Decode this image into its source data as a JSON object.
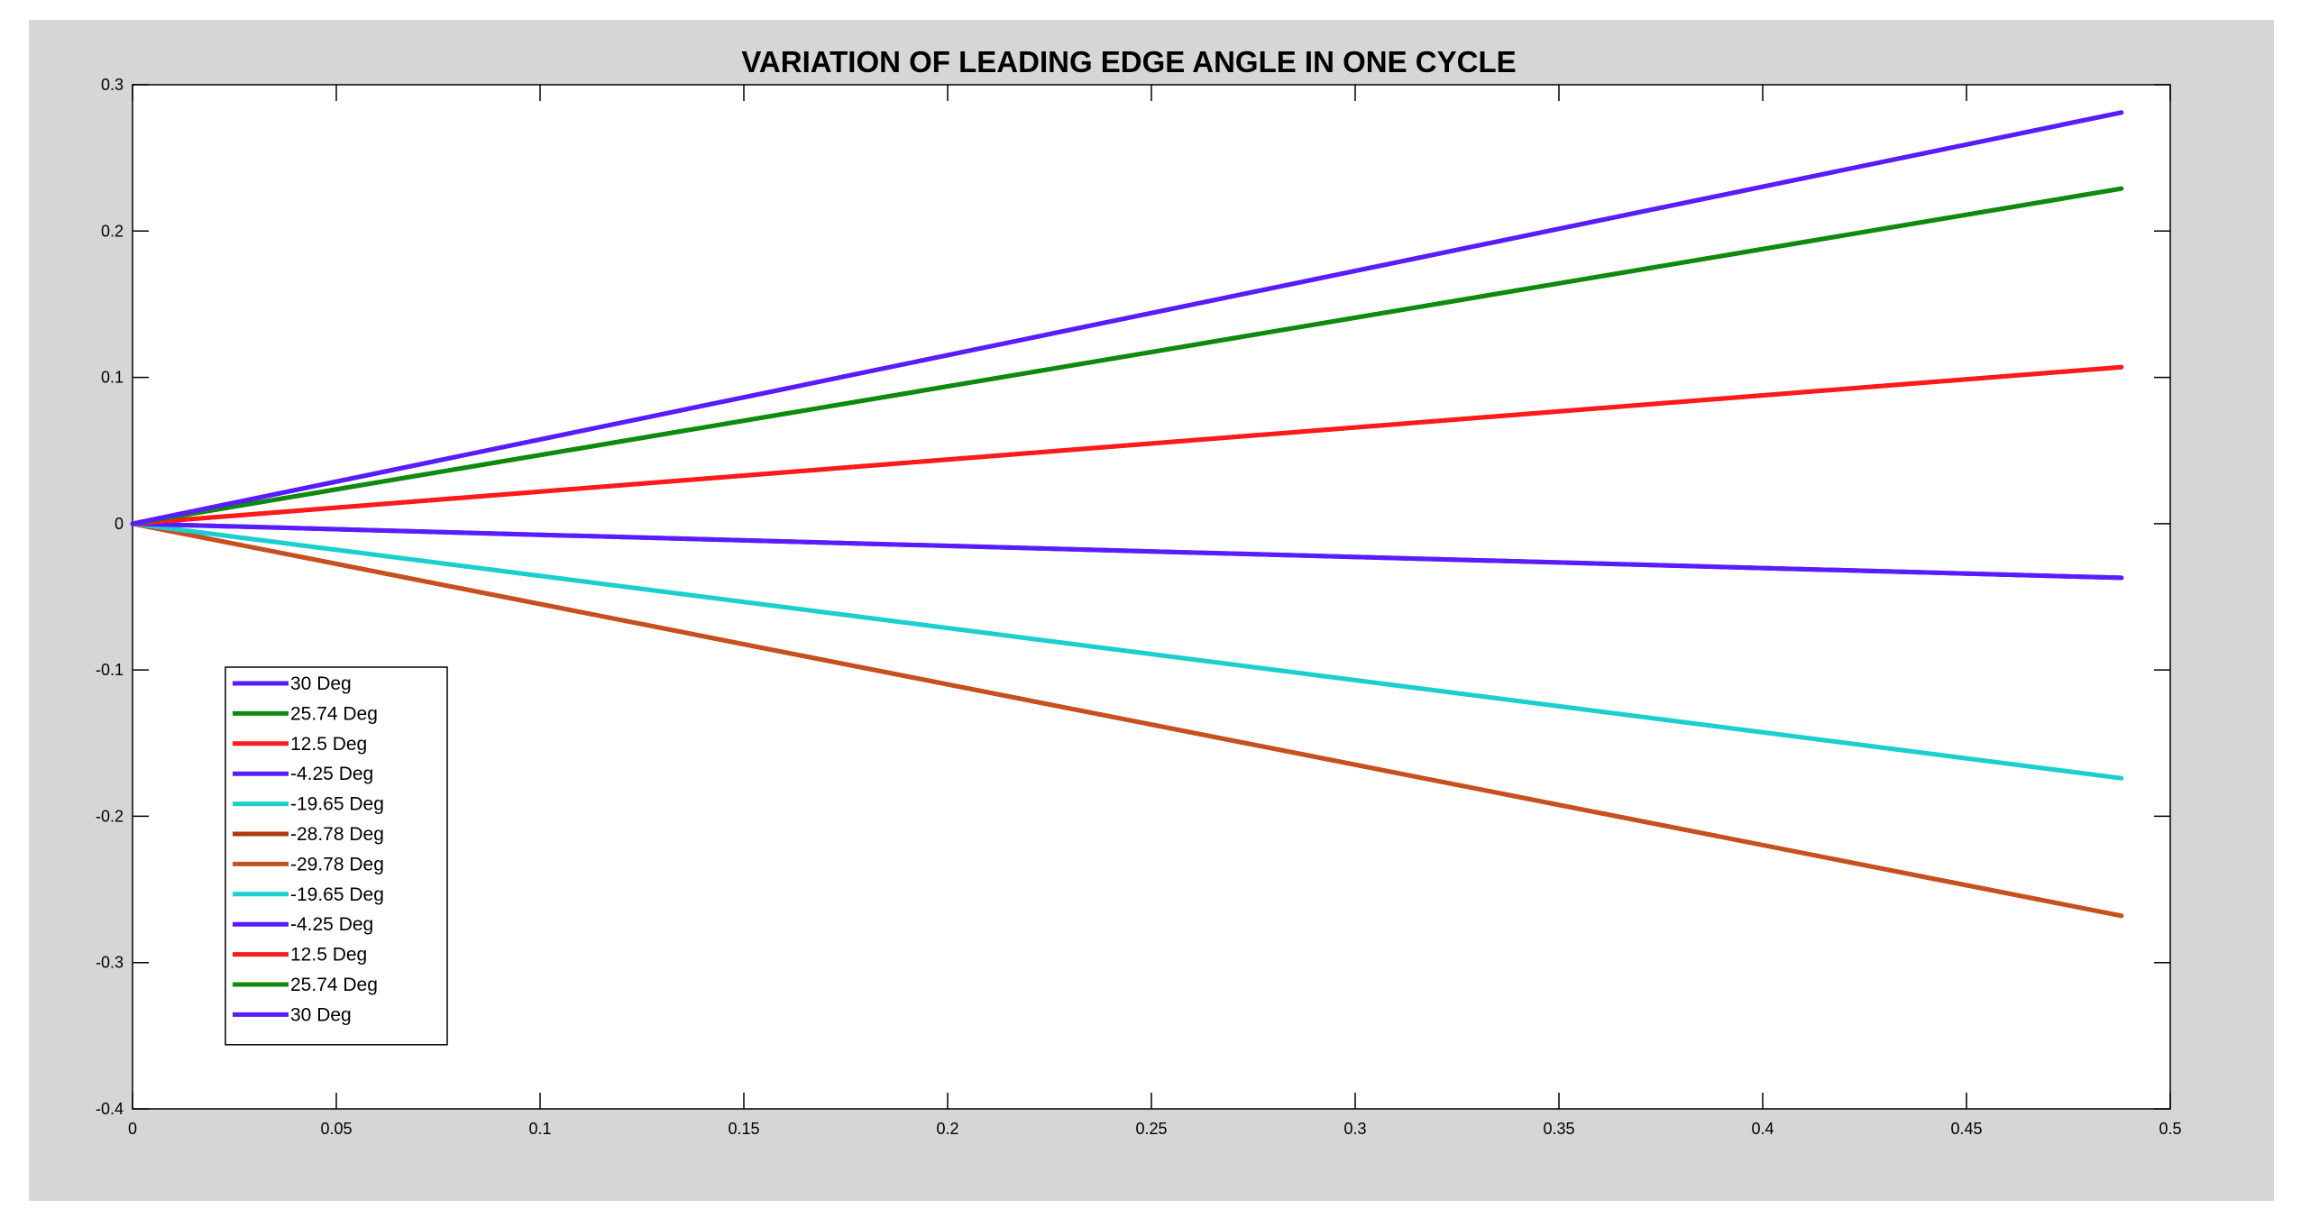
{
  "chart_data": {
    "type": "line",
    "title": "VARIATION OF LEADING EDGE ANGLE IN ONE CYCLE",
    "xlabel": "",
    "ylabel": "",
    "xlim": [
      0,
      0.5
    ],
    "ylim": [
      -0.4,
      0.3
    ],
    "x_ticks": [
      0,
      0.05,
      0.1,
      0.15,
      0.2,
      0.25,
      0.3,
      0.35,
      0.4,
      0.45,
      0.5
    ],
    "x_tick_labels": [
      "0",
      "0.05",
      "0.1",
      "0.15",
      "0.2",
      "0.25",
      "0.3",
      "0.35",
      "0.4",
      "0.45",
      "0.5"
    ],
    "y_ticks": [
      0.3,
      0.2,
      0.1,
      0,
      -0.1,
      -0.2,
      -0.3,
      -0.4
    ],
    "y_tick_labels": [
      "0.3",
      "0.2",
      "0.1",
      "0",
      "-0.1",
      "-0.2",
      "-0.3",
      "-0.4"
    ],
    "grid": false,
    "legend_position": "bottom-left",
    "series": [
      {
        "name": "30 Deg",
        "color": "#5a1cff",
        "x": [
          0,
          0.488
        ],
        "y": [
          0,
          0.281
        ]
      },
      {
        "name": "25.74 Deg",
        "color": "#0f8a0f",
        "x": [
          0,
          0.488
        ],
        "y": [
          0,
          0.229
        ]
      },
      {
        "name": "12.5 Deg",
        "color": "#ff1a1a",
        "x": [
          0,
          0.488
        ],
        "y": [
          0,
          0.107
        ]
      },
      {
        "name": "-4.25 Deg",
        "color": "#5a1cff",
        "x": [
          0,
          0.488
        ],
        "y": [
          0,
          -0.037
        ]
      },
      {
        "name": "-19.65 Deg",
        "color": "#1ccfcf",
        "x": [
          0,
          0.488
        ],
        "y": [
          0,
          -0.174
        ]
      },
      {
        "name": "-28.78 Deg",
        "color": "#b03a0a",
        "x": [
          0,
          0.488
        ],
        "y": [
          0,
          -0.268
        ]
      },
      {
        "name": "-29.78 Deg",
        "color": "#c8501e",
        "x": [
          0,
          0.488
        ],
        "y": [
          0,
          -0.268
        ]
      },
      {
        "name": "-19.65 Deg",
        "color": "#1ccfcf",
        "x": [
          0,
          0.488
        ],
        "y": [
          0,
          -0.174
        ]
      },
      {
        "name": "-4.25 Deg",
        "color": "#5a1cff",
        "x": [
          0,
          0.488
        ],
        "y": [
          0,
          -0.037
        ]
      },
      {
        "name": "12.5 Deg",
        "color": "#ff1a1a",
        "x": [
          0,
          0.488
        ],
        "y": [
          0,
          0.107
        ]
      },
      {
        "name": "25.74 Deg",
        "color": "#0f8a0f",
        "x": [
          0,
          0.488
        ],
        "y": [
          0,
          0.229
        ]
      },
      {
        "name": "30 Deg",
        "color": "#5a1cff",
        "x": [
          0,
          0.488
        ],
        "y": [
          0,
          0.281
        ]
      }
    ]
  }
}
